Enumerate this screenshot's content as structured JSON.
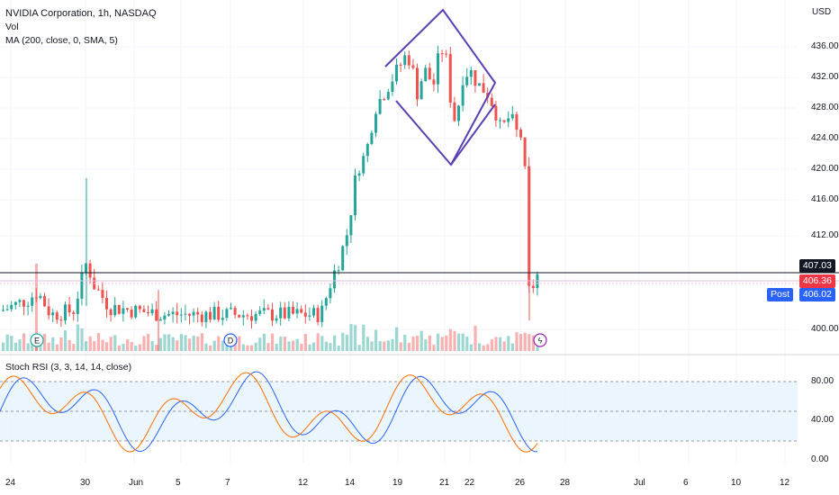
{
  "legend": {
    "title": "NVIDIA Corporation, 1h, NASDAQ",
    "vol": "Vol",
    "ma": "MA (200, close, 0, SMA, 5)",
    "stoch": "Stoch RSI (3, 3, 14, 14, close)"
  },
  "price_axis": {
    "currency": "USD",
    "ticks": [
      "436.00",
      "432.00",
      "428.00",
      "424.00",
      "420.00",
      "416.00",
      "412.00",
      "400.00"
    ],
    "tags": {
      "last": "407.03",
      "current": "406.36",
      "post_label": "Post",
      "post": "406.02"
    }
  },
  "rsi_axis": {
    "ticks": [
      "80.00",
      "40.00",
      "0.00"
    ]
  },
  "time_axis": {
    "ticks": [
      "24",
      "30",
      "Jun",
      "5",
      "7",
      "12",
      "14",
      "19",
      "21",
      "22",
      "26",
      "28",
      "Jul",
      "6",
      "10",
      "12"
    ]
  },
  "markers": [
    {
      "name": "earnings-marker",
      "letter": "E"
    },
    {
      "name": "dividend-marker",
      "letter": "D"
    },
    {
      "name": "split-marker",
      "letter": "ϟ"
    }
  ],
  "colors": {
    "up": "#26a69a",
    "down": "#ef5350",
    "pattern": "#5b3fb5",
    "k_line": "#2962ff",
    "d_line": "#ff6d00",
    "rsi_band": "#e3f2fd",
    "last_tag": "#131722",
    "current_tag": "#f23645",
    "post_tag": "#2962ff"
  }
}
